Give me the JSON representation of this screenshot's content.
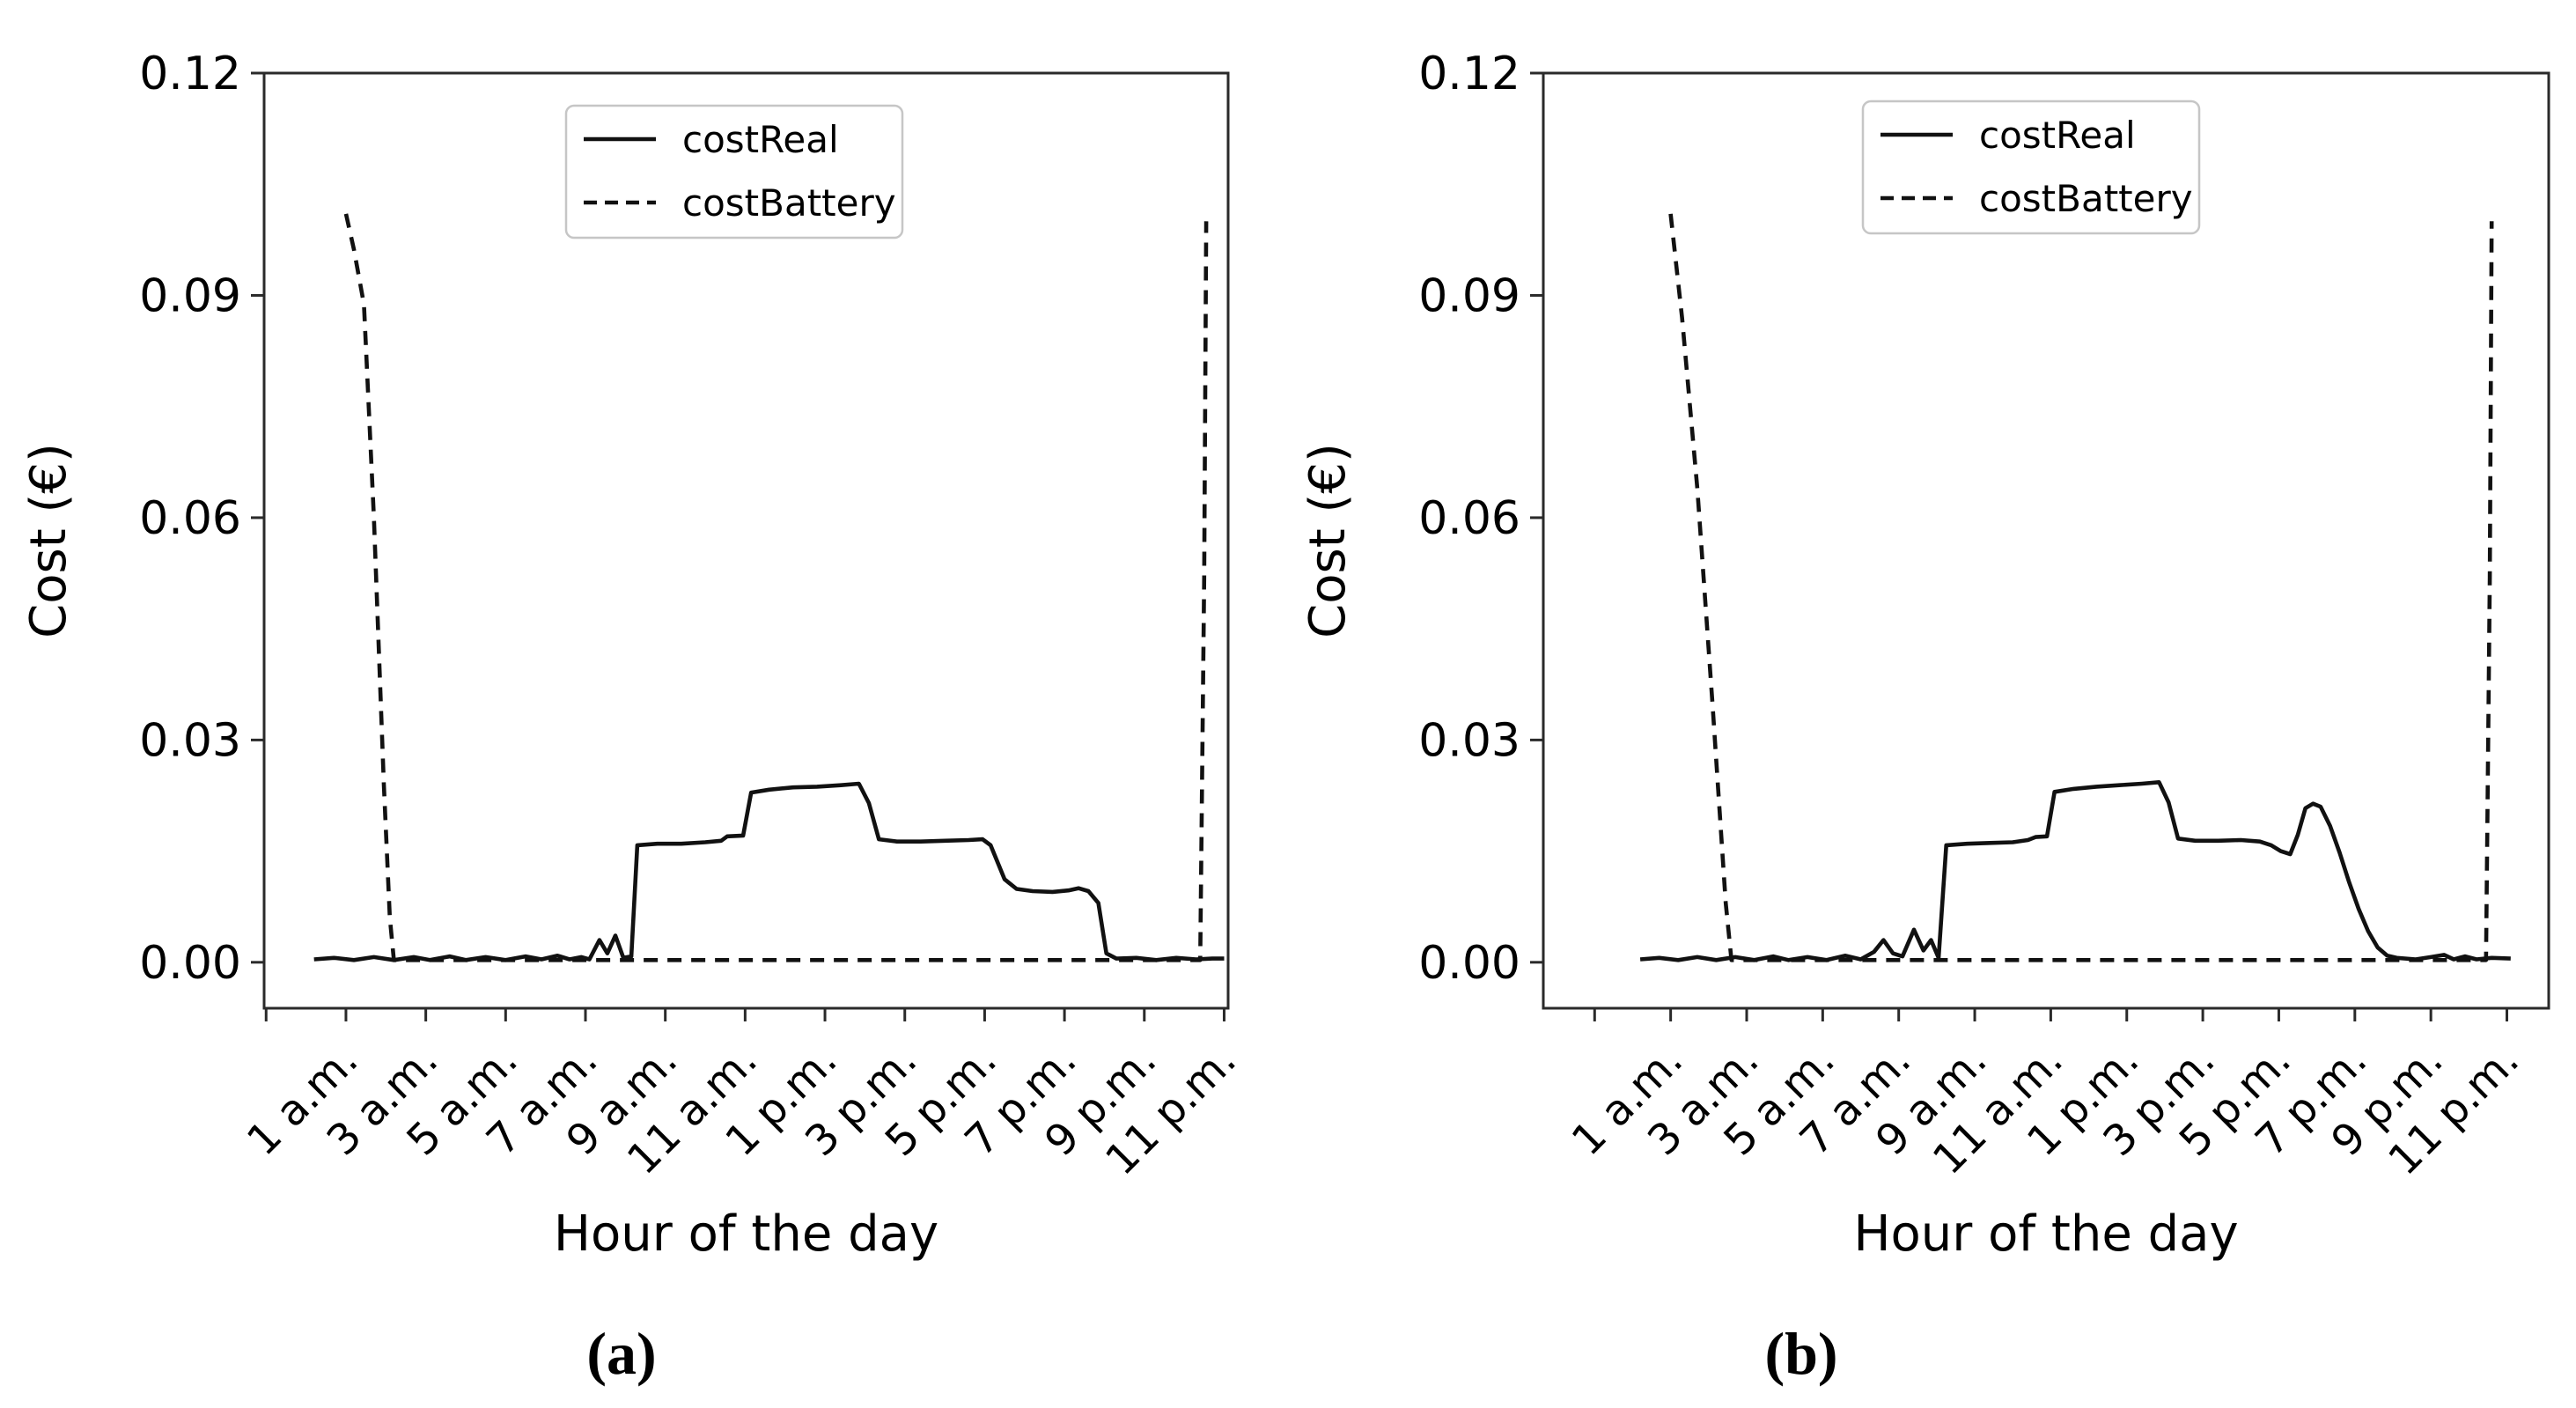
{
  "figure": {
    "background": "#ffffff",
    "line_color": "#111111",
    "spine_color": "#2a2a2a",
    "text_color": "#000000",
    "legend_border_color": "#c6c6c6",
    "legend_fill": "#ffffff"
  },
  "chart_data": [
    {
      "id": "a",
      "type": "line",
      "caption": "(a)",
      "xlabel": "Hour of the day",
      "ylabel": "Cost (€)",
      "xlim": [
        -1.05,
        23.1
      ],
      "ylim": [
        -0.0062,
        0.12
      ],
      "x_tick_hours": [
        -1,
        1,
        3,
        5,
        7,
        9,
        11,
        13,
        15,
        17,
        19,
        21,
        23
      ],
      "x_tick_labels": [
        "",
        "1 a.m.",
        "3 a.m.",
        "5 a.m.",
        "7 a.m.",
        "9 a.m.",
        "11 a.m.",
        "1 p.m.",
        "3 p.m.",
        "5 p.m.",
        "7 p.m.",
        "9 p.m.",
        "11 p.m."
      ],
      "y_ticks": [
        0.0,
        0.03,
        0.06,
        0.09,
        0.12
      ],
      "y_tick_labels": [
        "0.00",
        "0.03",
        "0.06",
        "0.09",
        "0.12"
      ],
      "grid": false,
      "legend_position": "upper center",
      "legend_entries": [
        {
          "label": "costReal",
          "style": "solid"
        },
        {
          "label": "costBattery",
          "style": "dashed"
        }
      ],
      "series": [
        {
          "name": "costBattery",
          "style": "dashed",
          "points": [
            [
              1.0,
              0.101
            ],
            [
              1.2,
              0.0962
            ],
            [
              1.45,
              0.0888
            ],
            [
              1.7,
              0.06
            ],
            [
              1.95,
              0.024
            ],
            [
              2.1,
              0.006
            ],
            [
              2.2,
              0.0003
            ],
            [
              3.0,
              0.0003
            ],
            [
              6.0,
              0.0003
            ],
            [
              10.0,
              0.0003
            ],
            [
              14.0,
              0.0003
            ],
            [
              18.0,
              0.0003
            ],
            [
              21.0,
              0.0003
            ],
            [
              22.4,
              0.0003
            ],
            [
              22.5,
              0.052
            ],
            [
              22.55,
              0.1
            ]
          ]
        },
        {
          "name": "costReal",
          "style": "solid",
          "points": [
            [
              0.2,
              0.0004
            ],
            [
              0.7,
              0.0006
            ],
            [
              1.2,
              0.0003
            ],
            [
              1.7,
              0.0007
            ],
            [
              2.2,
              0.0003
            ],
            [
              2.7,
              0.0007
            ],
            [
              3.1,
              0.0003
            ],
            [
              3.6,
              0.0008
            ],
            [
              4.0,
              0.0003
            ],
            [
              4.5,
              0.0007
            ],
            [
              5.0,
              0.0003
            ],
            [
              5.5,
              0.0008
            ],
            [
              5.9,
              0.0004
            ],
            [
              6.3,
              0.0009
            ],
            [
              6.6,
              0.0004
            ],
            [
              6.9,
              0.0007
            ],
            [
              7.1,
              0.0004
            ],
            [
              7.35,
              0.003
            ],
            [
              7.55,
              0.0012
            ],
            [
              7.75,
              0.0036
            ],
            [
              7.95,
              0.0006
            ],
            [
              8.15,
              0.0008
            ],
            [
              8.3,
              0.0158
            ],
            [
              8.8,
              0.016
            ],
            [
              9.4,
              0.016
            ],
            [
              10.0,
              0.0162
            ],
            [
              10.4,
              0.0164
            ],
            [
              10.55,
              0.017
            ],
            [
              10.95,
              0.0171
            ],
            [
              11.15,
              0.0229
            ],
            [
              11.6,
              0.0233
            ],
            [
              12.2,
              0.0236
            ],
            [
              12.8,
              0.0237
            ],
            [
              13.4,
              0.0239
            ],
            [
              13.85,
              0.0241
            ],
            [
              14.1,
              0.0215
            ],
            [
              14.35,
              0.0166
            ],
            [
              14.8,
              0.0163
            ],
            [
              15.4,
              0.0163
            ],
            [
              16.0,
              0.0164
            ],
            [
              16.6,
              0.0165
            ],
            [
              16.95,
              0.0166
            ],
            [
              17.15,
              0.0158
            ],
            [
              17.5,
              0.0112
            ],
            [
              17.8,
              0.0099
            ],
            [
              18.2,
              0.0096
            ],
            [
              18.7,
              0.0095
            ],
            [
              19.1,
              0.0097
            ],
            [
              19.35,
              0.01
            ],
            [
              19.6,
              0.0096
            ],
            [
              19.85,
              0.008
            ],
            [
              20.05,
              0.0012
            ],
            [
              20.3,
              0.0005
            ],
            [
              20.8,
              0.0006
            ],
            [
              21.3,
              0.0003
            ],
            [
              21.8,
              0.0006
            ],
            [
              22.3,
              0.0004
            ],
            [
              22.7,
              0.0005
            ],
            [
              23.0,
              0.0005
            ]
          ]
        }
      ]
    },
    {
      "id": "b",
      "type": "line",
      "caption": "(b)",
      "xlabel": "Hour of the day",
      "ylabel": "Cost (€)",
      "xlim": [
        -2.35,
        24.1
      ],
      "ylim": [
        -0.0062,
        0.12
      ],
      "x_tick_hours": [
        -1,
        1,
        3,
        5,
        7,
        9,
        11,
        13,
        15,
        17,
        19,
        21,
        23
      ],
      "x_tick_labels": [
        "",
        "1 a.m.",
        "3 a.m.",
        "5 a.m.",
        "7 a.m.",
        "9 a.m.",
        "11 a.m.",
        "1 p.m.",
        "3 p.m.",
        "5 p.m.",
        "7 p.m.",
        "9 p.m.",
        "11 p.m."
      ],
      "y_ticks": [
        0.0,
        0.03,
        0.06,
        0.09,
        0.12
      ],
      "y_tick_labels": [
        "0.00",
        "0.03",
        "0.06",
        "0.09",
        "0.12"
      ],
      "grid": false,
      "legend_position": "upper center",
      "legend_entries": [
        {
          "label": "costReal",
          "style": "solid"
        },
        {
          "label": "costBattery",
          "style": "dashed"
        }
      ],
      "series": [
        {
          "name": "costBattery",
          "style": "dashed",
          "points": [
            [
              1.0,
              0.101
            ],
            [
              1.3,
              0.087
            ],
            [
              1.7,
              0.064
            ],
            [
              2.1,
              0.035
            ],
            [
              2.45,
              0.008
            ],
            [
              2.6,
              0.0003
            ],
            [
              4.0,
              0.0003
            ],
            [
              8.0,
              0.0003
            ],
            [
              12.0,
              0.0003
            ],
            [
              16.0,
              0.0003
            ],
            [
              20.0,
              0.0003
            ],
            [
              22.45,
              0.0003
            ],
            [
              22.55,
              0.052
            ],
            [
              22.6,
              0.1
            ]
          ]
        },
        {
          "name": "costReal",
          "style": "solid",
          "points": [
            [
              0.2,
              0.0004
            ],
            [
              0.7,
              0.0006
            ],
            [
              1.2,
              0.0003
            ],
            [
              1.7,
              0.0007
            ],
            [
              2.2,
              0.0003
            ],
            [
              2.7,
              0.0007
            ],
            [
              3.2,
              0.0003
            ],
            [
              3.7,
              0.0008
            ],
            [
              4.1,
              0.0003
            ],
            [
              4.6,
              0.0007
            ],
            [
              5.1,
              0.0003
            ],
            [
              5.6,
              0.0009
            ],
            [
              6.0,
              0.0004
            ],
            [
              6.35,
              0.0014
            ],
            [
              6.6,
              0.003
            ],
            [
              6.85,
              0.0012
            ],
            [
              7.1,
              0.0008
            ],
            [
              7.4,
              0.0044
            ],
            [
              7.65,
              0.0016
            ],
            [
              7.85,
              0.003
            ],
            [
              8.05,
              0.0006
            ],
            [
              8.25,
              0.0158
            ],
            [
              8.8,
              0.016
            ],
            [
              9.4,
              0.0161
            ],
            [
              10.0,
              0.0162
            ],
            [
              10.4,
              0.0165
            ],
            [
              10.6,
              0.0169
            ],
            [
              10.9,
              0.017
            ],
            [
              11.1,
              0.023
            ],
            [
              11.6,
              0.0234
            ],
            [
              12.2,
              0.0237
            ],
            [
              12.8,
              0.0239
            ],
            [
              13.4,
              0.0241
            ],
            [
              13.85,
              0.0243
            ],
            [
              14.1,
              0.0216
            ],
            [
              14.35,
              0.0167
            ],
            [
              14.8,
              0.0164
            ],
            [
              15.4,
              0.0164
            ],
            [
              16.0,
              0.0165
            ],
            [
              16.5,
              0.0163
            ],
            [
              16.8,
              0.0158
            ],
            [
              17.05,
              0.015
            ],
            [
              17.3,
              0.0146
            ],
            [
              17.5,
              0.0172
            ],
            [
              17.7,
              0.0208
            ],
            [
              17.9,
              0.0214
            ],
            [
              18.1,
              0.021
            ],
            [
              18.35,
              0.0184
            ],
            [
              18.6,
              0.0148
            ],
            [
              18.85,
              0.0108
            ],
            [
              19.1,
              0.0072
            ],
            [
              19.35,
              0.0042
            ],
            [
              19.6,
              0.002
            ],
            [
              19.85,
              0.0009
            ],
            [
              20.1,
              0.0006
            ],
            [
              20.6,
              0.0004
            ],
            [
              21.0,
              0.0007
            ],
            [
              21.35,
              0.001
            ],
            [
              21.6,
              0.0004
            ],
            [
              21.9,
              0.0008
            ],
            [
              22.2,
              0.0004
            ],
            [
              22.6,
              0.0006
            ],
            [
              23.1,
              0.0005
            ]
          ]
        }
      ]
    }
  ]
}
